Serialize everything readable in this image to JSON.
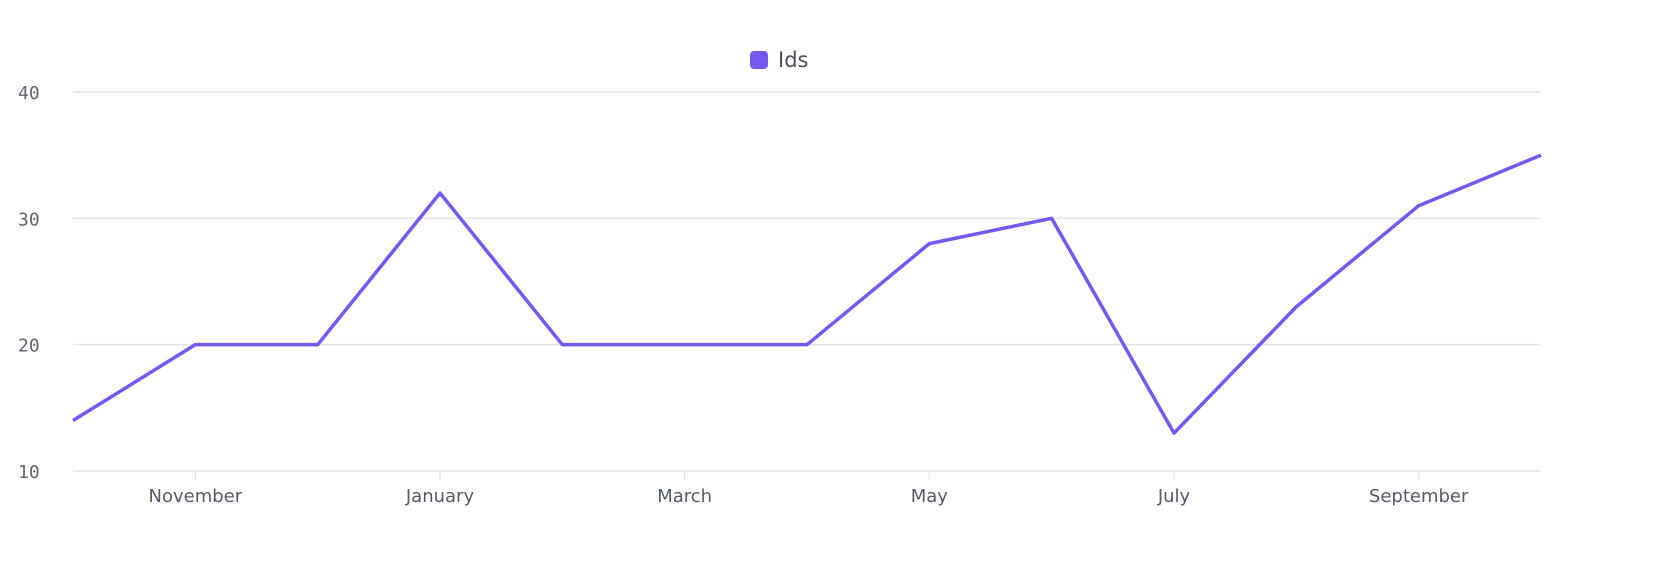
{
  "chart_data": {
    "type": "line",
    "categories": [
      null,
      "November",
      null,
      "January",
      null,
      "March",
      null,
      "May",
      null,
      "July",
      null,
      "September",
      null
    ],
    "series": [
      {
        "name": "Ids",
        "color": "#7458f0",
        "values": [
          14,
          20,
          20,
          32,
          20,
          20,
          20,
          28,
          30,
          13,
          23,
          31,
          35
        ]
      }
    ],
    "ylim": [
      10,
      40
    ],
    "yticks": [
      10,
      20,
      30,
      40
    ],
    "grid": true,
    "legend": "top"
  }
}
